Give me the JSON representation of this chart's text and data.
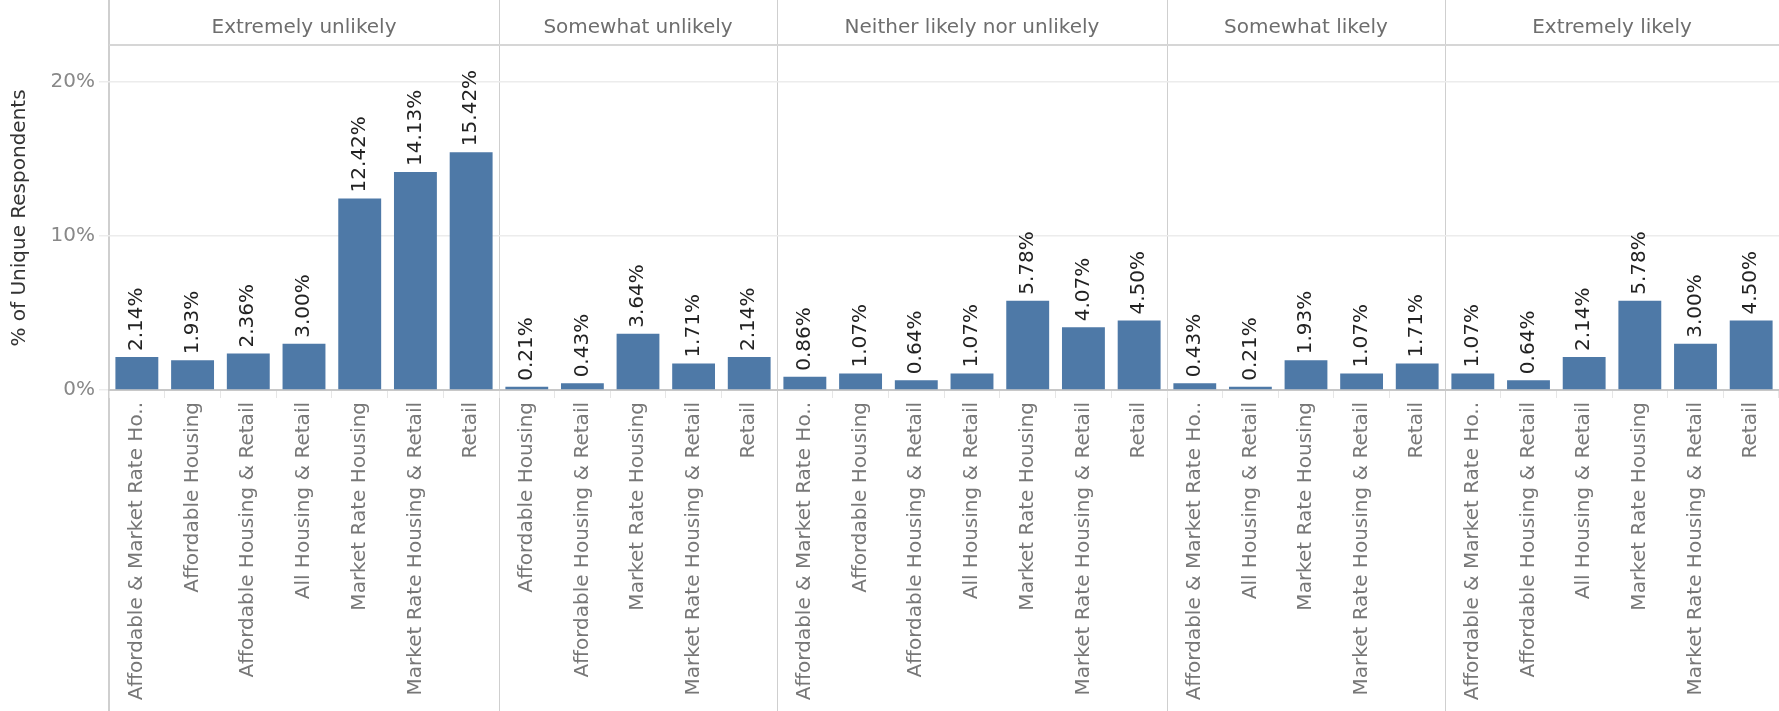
{
  "chart_data": [
    {
      "type": "bar",
      "title": "Extremely unlikely",
      "ylabel": "% of Unique Respondents",
      "categories": [
        "Affordable & Market Rate Ho..",
        "Affordable Housing",
        "Affordable Housing & Retail",
        "All Housing & Retail",
        "Market Rate Housing",
        "Market Rate Housing & Retail",
        "Retail"
      ],
      "values": [
        2.14,
        1.93,
        2.36,
        3.0,
        12.42,
        14.13,
        15.42
      ],
      "value_labels": [
        "2.14%",
        "1.93%",
        "2.36%",
        "3.00%",
        "12.42%",
        "14.13%",
        "15.42%"
      ],
      "color": "#4e79a7",
      "ylim": [
        0,
        22.3
      ],
      "yticks": [
        {
          "value": 0,
          "label": "0%"
        },
        {
          "value": 10,
          "label": "10%"
        },
        {
          "value": 20,
          "label": "20%"
        }
      ],
      "grid": "y"
    },
    {
      "type": "bar",
      "title": "Somewhat unlikely",
      "categories": [
        "Affordable Housing",
        "Affordable Housing & Retail",
        "Market Rate Housing",
        "Market Rate Housing & Retail",
        "Retail"
      ],
      "values": [
        0.21,
        0.43,
        3.64,
        1.71,
        2.14
      ],
      "value_labels": [
        "0.21%",
        "0.43%",
        "3.64%",
        "1.71%",
        "2.14%"
      ],
      "color": "#4e79a7",
      "ylim": [
        0,
        22.3
      ],
      "yticks": [
        0,
        10,
        20
      ],
      "grid": "y",
      "tick_labels": "x"
    },
    {
      "type": "bar",
      "title": "Neither likely nor unlikely",
      "categories": [
        "Affordable & Market Rate Ho..",
        "Affordable Housing",
        "Affordable Housing & Retail",
        "All Housing & Retail",
        "Market Rate Housing",
        "Market Rate Housing & Retail",
        "Retail"
      ],
      "values": [
        0.86,
        1.07,
        0.64,
        1.07,
        5.78,
        4.07,
        4.5
      ],
      "value_labels": [
        "0.86%",
        "1.07%",
        "0.64%",
        "1.07%",
        "5.78%",
        "4.07%",
        "4.50%"
      ],
      "color": "#4e79a7",
      "ylim": [
        0,
        22.3
      ],
      "yticks": [
        0,
        10,
        20
      ],
      "grid": "y",
      "tick_labels": "x"
    },
    {
      "type": "bar",
      "title": "Somewhat likely",
      "categories": [
        "Affordable & Market Rate Ho..",
        "All Housing & Retail",
        "Market Rate Housing",
        "Market Rate Housing & Retail",
        "Retail"
      ],
      "values": [
        0.43,
        0.21,
        1.93,
        1.07,
        1.71
      ],
      "value_labels": [
        "0.43%",
        "0.21%",
        "1.93%",
        "1.07%",
        "1.71%"
      ],
      "color": "#4e79a7",
      "ylim": [
        0,
        22.3
      ],
      "yticks": [
        0,
        10,
        20
      ],
      "grid": "y",
      "tick_labels": "x"
    },
    {
      "type": "bar",
      "title": "Extremely likely",
      "categories": [
        "Affordable & Market Rate Ho..",
        "Affordable Housing & Retail",
        "All Housing & Retail",
        "Market Rate Housing",
        "Market Rate Housing & Retail",
        "Retail"
      ],
      "values": [
        1.07,
        0.64,
        2.14,
        5.78,
        3.0,
        4.5
      ],
      "value_labels": [
        "1.07%",
        "0.64%",
        "2.14%",
        "5.78%",
        "3.00%",
        "4.50%"
      ],
      "color": "#4e79a7",
      "ylim": [
        0,
        22.3
      ],
      "yticks": [
        0,
        10,
        20
      ],
      "grid": "y",
      "tick_labels": "x"
    }
  ]
}
